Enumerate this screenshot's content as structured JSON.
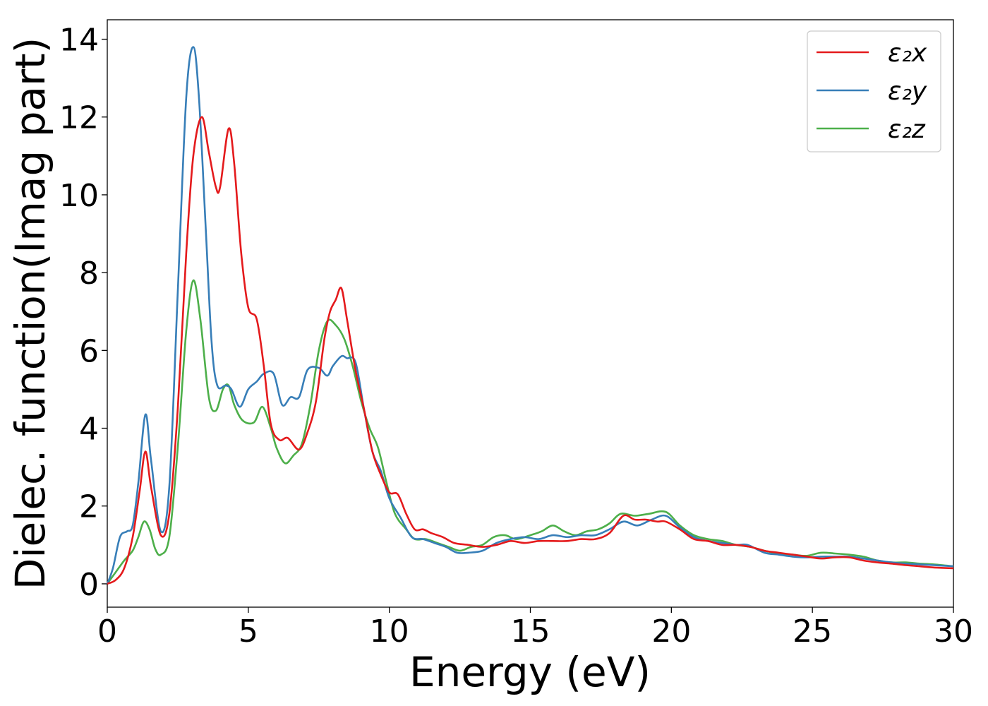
{
  "chart_data": {
    "type": "line",
    "title": "",
    "xlabel": "Energy (eV)",
    "ylabel": "Dielec. function(Imag part)",
    "xlim": [
      0,
      30
    ],
    "ylim": [
      -0.6,
      14.5
    ],
    "xticks": [
      0,
      5,
      10,
      15,
      20,
      25,
      30
    ],
    "yticks": [
      0,
      2,
      4,
      6,
      8,
      10,
      12,
      14
    ],
    "grid": false,
    "legend_position": "top-right",
    "series": [
      {
        "name": "ε₂x",
        "color": "#e41a1c",
        "points": [
          [
            0,
            0.0
          ],
          [
            0.3,
            0.1
          ],
          [
            0.6,
            0.4
          ],
          [
            0.9,
            1.2
          ],
          [
            1.15,
            2.4
          ],
          [
            1.35,
            3.4
          ],
          [
            1.55,
            2.5
          ],
          [
            1.9,
            1.25
          ],
          [
            2.2,
            1.8
          ],
          [
            2.5,
            4.5
          ],
          [
            2.8,
            8.5
          ],
          [
            3.05,
            11.0
          ],
          [
            3.35,
            12.0
          ],
          [
            3.6,
            11.1
          ],
          [
            3.85,
            10.2
          ],
          [
            4.0,
            10.2
          ],
          [
            4.3,
            11.7
          ],
          [
            4.5,
            10.8
          ],
          [
            4.75,
            8.5
          ],
          [
            5.0,
            7.1
          ],
          [
            5.3,
            6.8
          ],
          [
            5.55,
            5.6
          ],
          [
            5.8,
            4.1
          ],
          [
            6.1,
            3.7
          ],
          [
            6.4,
            3.75
          ],
          [
            6.8,
            3.45
          ],
          [
            7.1,
            3.9
          ],
          [
            7.4,
            4.7
          ],
          [
            7.7,
            6.3
          ],
          [
            7.9,
            7.0
          ],
          [
            8.1,
            7.3
          ],
          [
            8.3,
            7.6
          ],
          [
            8.5,
            6.8
          ],
          [
            8.8,
            5.5
          ],
          [
            9.1,
            4.5
          ],
          [
            9.4,
            3.4
          ],
          [
            9.7,
            2.8
          ],
          [
            10.0,
            2.35
          ],
          [
            10.3,
            2.3
          ],
          [
            10.6,
            1.8
          ],
          [
            10.9,
            1.4
          ],
          [
            11.2,
            1.4
          ],
          [
            11.5,
            1.3
          ],
          [
            11.9,
            1.2
          ],
          [
            12.3,
            1.05
          ],
          [
            12.8,
            1.0
          ],
          [
            13.3,
            0.95
          ],
          [
            13.8,
            1.0
          ],
          [
            14.3,
            1.1
          ],
          [
            14.8,
            1.05
          ],
          [
            15.3,
            1.1
          ],
          [
            15.8,
            1.1
          ],
          [
            16.3,
            1.1
          ],
          [
            16.8,
            1.15
          ],
          [
            17.3,
            1.15
          ],
          [
            17.8,
            1.3
          ],
          [
            18.3,
            1.75
          ],
          [
            18.7,
            1.65
          ],
          [
            19.1,
            1.65
          ],
          [
            19.5,
            1.6
          ],
          [
            19.8,
            1.6
          ],
          [
            20.3,
            1.4
          ],
          [
            20.8,
            1.15
          ],
          [
            21.3,
            1.1
          ],
          [
            21.8,
            1.0
          ],
          [
            22.3,
            1.0
          ],
          [
            22.8,
            0.95
          ],
          [
            23.3,
            0.85
          ],
          [
            23.8,
            0.8
          ],
          [
            24.3,
            0.75
          ],
          [
            24.8,
            0.7
          ],
          [
            25.3,
            0.65
          ],
          [
            25.8,
            0.68
          ],
          [
            26.3,
            0.68
          ],
          [
            26.8,
            0.6
          ],
          [
            27.3,
            0.55
          ],
          [
            27.8,
            0.52
          ],
          [
            28.3,
            0.48
          ],
          [
            28.8,
            0.45
          ],
          [
            29.3,
            0.42
          ],
          [
            30.0,
            0.4
          ]
        ]
      },
      {
        "name": "ε₂y",
        "color": "#377eb8",
        "points": [
          [
            0,
            0.0
          ],
          [
            0.2,
            0.4
          ],
          [
            0.45,
            1.2
          ],
          [
            0.7,
            1.35
          ],
          [
            0.9,
            1.5
          ],
          [
            1.1,
            2.6
          ],
          [
            1.35,
            4.35
          ],
          [
            1.55,
            3.2
          ],
          [
            1.9,
            1.35
          ],
          [
            2.2,
            2.5
          ],
          [
            2.5,
            7.5
          ],
          [
            2.8,
            12.5
          ],
          [
            3.05,
            13.8
          ],
          [
            3.25,
            12.5
          ],
          [
            3.5,
            9.0
          ],
          [
            3.7,
            6.2
          ],
          [
            3.9,
            5.1
          ],
          [
            4.2,
            5.1
          ],
          [
            4.4,
            5.0
          ],
          [
            4.7,
            4.55
          ],
          [
            5.0,
            5.0
          ],
          [
            5.3,
            5.2
          ],
          [
            5.55,
            5.4
          ],
          [
            5.9,
            5.4
          ],
          [
            6.2,
            4.6
          ],
          [
            6.5,
            4.8
          ],
          [
            6.8,
            4.8
          ],
          [
            7.1,
            5.5
          ],
          [
            7.5,
            5.55
          ],
          [
            7.8,
            5.35
          ],
          [
            8.0,
            5.6
          ],
          [
            8.3,
            5.85
          ],
          [
            8.5,
            5.8
          ],
          [
            8.8,
            5.7
          ],
          [
            9.1,
            4.5
          ],
          [
            9.4,
            3.4
          ],
          [
            9.7,
            2.9
          ],
          [
            10.0,
            2.2
          ],
          [
            10.4,
            1.7
          ],
          [
            10.8,
            1.2
          ],
          [
            11.2,
            1.15
          ],
          [
            11.6,
            1.05
          ],
          [
            12.0,
            0.95
          ],
          [
            12.4,
            0.8
          ],
          [
            12.8,
            0.8
          ],
          [
            13.3,
            0.85
          ],
          [
            13.8,
            1.05
          ],
          [
            14.3,
            1.15
          ],
          [
            14.8,
            1.2
          ],
          [
            15.3,
            1.15
          ],
          [
            15.8,
            1.25
          ],
          [
            16.3,
            1.2
          ],
          [
            16.8,
            1.25
          ],
          [
            17.3,
            1.25
          ],
          [
            17.8,
            1.4
          ],
          [
            18.3,
            1.6
          ],
          [
            18.8,
            1.5
          ],
          [
            19.3,
            1.65
          ],
          [
            19.8,
            1.75
          ],
          [
            20.3,
            1.45
          ],
          [
            20.8,
            1.2
          ],
          [
            21.3,
            1.1
          ],
          [
            21.8,
            1.05
          ],
          [
            22.3,
            1.0
          ],
          [
            22.7,
            1.0
          ],
          [
            23.3,
            0.8
          ],
          [
            23.8,
            0.75
          ],
          [
            24.3,
            0.7
          ],
          [
            24.8,
            0.68
          ],
          [
            25.3,
            0.7
          ],
          [
            25.8,
            0.7
          ],
          [
            26.3,
            0.7
          ],
          [
            26.8,
            0.65
          ],
          [
            27.3,
            0.6
          ],
          [
            27.8,
            0.55
          ],
          [
            28.3,
            0.52
          ],
          [
            28.8,
            0.5
          ],
          [
            29.3,
            0.48
          ],
          [
            30.0,
            0.45
          ]
        ]
      },
      {
        "name": "ε₂z",
        "color": "#4daf4a",
        "points": [
          [
            0,
            0.0
          ],
          [
            0.3,
            0.3
          ],
          [
            0.6,
            0.6
          ],
          [
            0.9,
            0.85
          ],
          [
            1.1,
            1.2
          ],
          [
            1.3,
            1.6
          ],
          [
            1.5,
            1.4
          ],
          [
            1.7,
            0.9
          ],
          [
            1.9,
            0.75
          ],
          [
            2.2,
            1.2
          ],
          [
            2.5,
            3.5
          ],
          [
            2.8,
            6.5
          ],
          [
            3.05,
            7.8
          ],
          [
            3.3,
            6.8
          ],
          [
            3.6,
            4.8
          ],
          [
            3.85,
            4.45
          ],
          [
            4.1,
            5.0
          ],
          [
            4.3,
            5.1
          ],
          [
            4.5,
            4.6
          ],
          [
            4.8,
            4.2
          ],
          [
            5.2,
            4.15
          ],
          [
            5.5,
            4.55
          ],
          [
            5.8,
            4.0
          ],
          [
            6.0,
            3.5
          ],
          [
            6.3,
            3.1
          ],
          [
            6.6,
            3.3
          ],
          [
            6.9,
            3.6
          ],
          [
            7.2,
            4.6
          ],
          [
            7.5,
            6.0
          ],
          [
            7.8,
            6.75
          ],
          [
            8.1,
            6.65
          ],
          [
            8.4,
            6.3
          ],
          [
            8.7,
            5.6
          ],
          [
            9.0,
            4.7
          ],
          [
            9.3,
            4.0
          ],
          [
            9.6,
            3.5
          ],
          [
            9.9,
            2.6
          ],
          [
            10.2,
            1.8
          ],
          [
            10.6,
            1.4
          ],
          [
            10.9,
            1.15
          ],
          [
            11.3,
            1.15
          ],
          [
            11.7,
            1.05
          ],
          [
            12.1,
            0.95
          ],
          [
            12.5,
            0.85
          ],
          [
            12.9,
            0.95
          ],
          [
            13.3,
            1.0
          ],
          [
            13.7,
            1.2
          ],
          [
            14.1,
            1.25
          ],
          [
            14.5,
            1.15
          ],
          [
            15.0,
            1.25
          ],
          [
            15.4,
            1.35
          ],
          [
            15.8,
            1.5
          ],
          [
            16.2,
            1.35
          ],
          [
            16.6,
            1.25
          ],
          [
            17.0,
            1.35
          ],
          [
            17.4,
            1.4
          ],
          [
            17.8,
            1.55
          ],
          [
            18.2,
            1.8
          ],
          [
            18.7,
            1.75
          ],
          [
            19.2,
            1.8
          ],
          [
            19.8,
            1.85
          ],
          [
            20.3,
            1.5
          ],
          [
            20.8,
            1.25
          ],
          [
            21.3,
            1.15
          ],
          [
            21.8,
            1.1
          ],
          [
            22.3,
            1.0
          ],
          [
            22.8,
            0.95
          ],
          [
            23.3,
            0.85
          ],
          [
            23.8,
            0.78
          ],
          [
            24.3,
            0.75
          ],
          [
            24.8,
            0.72
          ],
          [
            25.3,
            0.8
          ],
          [
            25.8,
            0.78
          ],
          [
            26.3,
            0.75
          ],
          [
            26.8,
            0.7
          ],
          [
            27.3,
            0.6
          ],
          [
            27.8,
            0.55
          ],
          [
            28.3,
            0.55
          ],
          [
            28.8,
            0.52
          ],
          [
            29.3,
            0.5
          ],
          [
            30.0,
            0.45
          ]
        ]
      }
    ]
  }
}
